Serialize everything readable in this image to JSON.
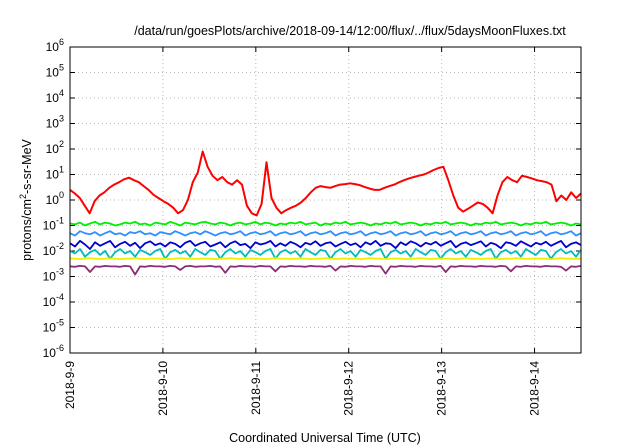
{
  "chart_data": {
    "type": "line",
    "title": "/data/run/goesPlots/archive/2018-09-14/12:00/flux/../flux/5daysMoonFluxes.txt",
    "xlabel": "Coordinated Universal Time (UTC)",
    "ylabel": "protons/cm²-s-sr-MeV",
    "ylabel_parts": {
      "pre": "protons/cm",
      "sup": "2",
      "post": "-s-sr-MeV"
    },
    "yscale": "log",
    "ylim": [
      1e-06,
      1000000.0
    ],
    "yticks": [
      {
        "base": "10",
        "exp": "6"
      },
      {
        "base": "10",
        "exp": "5"
      },
      {
        "base": "10",
        "exp": "4"
      },
      {
        "base": "10",
        "exp": "3"
      },
      {
        "base": "10",
        "exp": "2"
      },
      {
        "base": "10",
        "exp": "1"
      },
      {
        "base": "10",
        "exp": "0"
      },
      {
        "base": "10",
        "exp": "-1"
      },
      {
        "base": "10",
        "exp": "-2"
      },
      {
        "base": "10",
        "exp": "-3"
      },
      {
        "base": "10",
        "exp": "-4"
      },
      {
        "base": "10",
        "exp": "-5"
      },
      {
        "base": "10",
        "exp": "-6"
      }
    ],
    "xlim": [
      "2018-09-09T00:00",
      "2018-09-14T12:00"
    ],
    "xticks": [
      "2018-9-9",
      "2018-9-10",
      "2018-9-11",
      "2018-9-12",
      "2018-9-13",
      "2018-9-14"
    ],
    "grid": true,
    "series": [
      {
        "color": "#ff0000",
        "values": [
          2.5,
          1.8,
          1.2,
          0.6,
          0.3,
          0.9,
          1.5,
          2,
          3,
          4,
          5,
          6.5,
          7.5,
          6,
          5,
          3.5,
          2.5,
          1.6,
          1.2,
          0.9,
          0.7,
          0.5,
          0.3,
          0.4,
          1,
          5,
          12,
          80,
          20,
          9,
          6,
          8,
          5,
          4,
          6,
          4,
          0.6,
          0.3,
          0.25,
          0.7,
          30,
          1.2,
          0.5,
          0.3,
          0.4,
          0.5,
          0.6,
          0.8,
          1.2,
          2,
          3,
          3.5,
          3.2,
          3,
          3.5,
          4,
          4.2,
          4.5,
          4.2,
          3.8,
          3.2,
          2.8,
          2.5,
          2.5,
          3,
          3.5,
          4,
          5,
          6,
          7,
          8,
          9,
          10,
          12,
          15,
          18,
          20,
          6,
          1.5,
          0.5,
          0.35,
          0.45,
          0.6,
          0.8,
          0.7,
          0.5,
          0.3,
          1.5,
          5,
          8,
          6,
          5,
          9,
          8,
          7,
          6,
          5.5,
          5,
          4,
          0.9,
          1.5,
          1,
          2,
          1.2,
          1.8
        ]
      },
      {
        "color": "#00ee00",
        "values": [
          0.12,
          0.11,
          0.13,
          0.1,
          0.12,
          0.14,
          0.11,
          0.13,
          0.12,
          0.1,
          0.11,
          0.13,
          0.12,
          0.14,
          0.11,
          0.12,
          0.1,
          0.13,
          0.12,
          0.11,
          0.14,
          0.12,
          0.1,
          0.13,
          0.12,
          0.11,
          0.13,
          0.14,
          0.12,
          0.11,
          0.13,
          0.12,
          0.1,
          0.12,
          0.13,
          0.11,
          0.12,
          0.14,
          0.11,
          0.13,
          0.12,
          0.1,
          0.12,
          0.11,
          0.13,
          0.12,
          0.14,
          0.11,
          0.12,
          0.13,
          0.1,
          0.12,
          0.11,
          0.13,
          0.12,
          0.14,
          0.11,
          0.12,
          0.13,
          0.12,
          0.1,
          0.12,
          0.11,
          0.13,
          0.12,
          0.14,
          0.11,
          0.12,
          0.13,
          0.12,
          0.1,
          0.12,
          0.11,
          0.13,
          0.12,
          0.14,
          0.11,
          0.12,
          0.13,
          0.12,
          0.1,
          0.12,
          0.11,
          0.13,
          0.12,
          0.14,
          0.11,
          0.12,
          0.13,
          0.12,
          0.1,
          0.12,
          0.11,
          0.13,
          0.12,
          0.14,
          0.11,
          0.12,
          0.13,
          0.12,
          0.1,
          0.12,
          0.11
        ]
      },
      {
        "color": "#2f8fff",
        "values": [
          0.05,
          0.04,
          0.06,
          0.05,
          0.045,
          0.055,
          0.04,
          0.05,
          0.06,
          0.045,
          0.05,
          0.04,
          0.055,
          0.05,
          0.06,
          0.045,
          0.05,
          0.04,
          0.055,
          0.05,
          0.045,
          0.06,
          0.05,
          0.04,
          0.05,
          0.055,
          0.045,
          0.06,
          0.05,
          0.04,
          0.05,
          0.055,
          0.045,
          0.05,
          0.06,
          0.04,
          0.05,
          0.055,
          0.045,
          0.05,
          0.06,
          0.04,
          0.05,
          0.055,
          0.045,
          0.05,
          0.06,
          0.04,
          0.05,
          0.055,
          0.045,
          0.05,
          0.06,
          0.04,
          0.05,
          0.055,
          0.045,
          0.05,
          0.06,
          0.04,
          0.05,
          0.055,
          0.045,
          0.05,
          0.06,
          0.04,
          0.05,
          0.055,
          0.045,
          0.05,
          0.06,
          0.04,
          0.05,
          0.055,
          0.045,
          0.05,
          0.06,
          0.04,
          0.05,
          0.055,
          0.045,
          0.05,
          0.06,
          0.04,
          0.05,
          0.055,
          0.045,
          0.05,
          0.06,
          0.04,
          0.05,
          0.055,
          0.045,
          0.05,
          0.06,
          0.04,
          0.05,
          0.055,
          0.045,
          0.05,
          0.06,
          0.04,
          0.05
        ]
      },
      {
        "color": "#0000cc",
        "values": [
          0.02,
          0.015,
          0.025,
          0.018,
          0.012,
          0.022,
          0.016,
          0.02,
          0.025,
          0.014,
          0.019,
          0.023,
          0.016,
          0.021,
          0.013,
          0.02,
          0.024,
          0.017,
          0.02,
          0.015,
          0.022,
          0.019,
          0.014,
          0.021,
          0.025,
          0.016,
          0.02,
          0.023,
          0.015,
          0.018,
          0.022,
          0.014,
          0.02,
          0.024,
          0.017,
          0.019,
          0.013,
          0.022,
          0.018,
          0.02,
          0.025,
          0.015,
          0.02,
          0.016,
          0.023,
          0.019,
          0.014,
          0.021,
          0.018,
          0.024,
          0.016,
          0.02,
          0.022,
          0.015,
          0.019,
          0.023,
          0.017,
          0.02,
          0.014,
          0.022,
          0.018,
          0.025,
          0.016,
          0.02,
          0.019,
          0.013,
          0.022,
          0.017,
          0.024,
          0.02,
          0.015,
          0.021,
          0.018,
          0.023,
          0.016,
          0.02,
          0.025,
          0.014,
          0.019,
          0.022,
          0.017,
          0.02,
          0.024,
          0.015,
          0.021,
          0.018,
          0.013,
          0.022,
          0.02,
          0.016,
          0.024,
          0.019,
          0.015,
          0.021,
          0.018,
          0.023,
          0.016,
          0.02,
          0.025,
          0.014,
          0.019,
          0.022,
          0.017
        ]
      },
      {
        "color": "#00bbbb",
        "values": [
          0.01,
          0.008,
          0.012,
          0.006,
          0.009,
          0.011,
          0.007,
          0.01,
          0.005,
          0.009,
          0.012,
          0.008,
          0.01,
          0.006,
          0.011,
          0.009,
          0.007,
          0.01,
          0.012,
          0.005,
          0.009,
          0.011,
          0.008,
          0.01,
          0.006,
          0.012,
          0.009,
          0.007,
          0.011,
          0.01,
          0.005,
          0.009,
          0.012,
          0.008,
          0.01,
          0.006,
          0.011,
          0.009,
          0.007,
          0.01,
          0.012,
          0.005,
          0.009,
          0.011,
          0.008,
          0.01,
          0.006,
          0.012,
          0.009,
          0.007,
          0.011,
          0.01,
          0.005,
          0.009,
          0.012,
          0.008,
          0.01,
          0.006,
          0.011,
          0.009,
          0.007,
          0.01,
          0.012,
          0.005,
          0.009,
          0.011,
          0.008,
          0.01,
          0.006,
          0.012,
          0.009,
          0.007,
          0.011,
          0.01,
          0.005,
          0.009,
          0.012,
          0.008,
          0.01,
          0.006,
          0.011,
          0.009,
          0.007,
          0.01,
          0.012,
          0.005,
          0.009,
          0.011,
          0.008,
          0.01,
          0.006,
          0.012,
          0.009,
          0.007,
          0.011,
          0.01,
          0.005,
          0.009,
          0.012,
          0.008,
          0.01,
          0.006,
          0.011
        ]
      },
      {
        "color": "#eeee00",
        "values": [
          0.005,
          0.005,
          0.0048,
          0.005,
          0.0052,
          0.005,
          0.0049,
          0.005,
          0.0051,
          0.005,
          0.0048,
          0.005,
          0.005,
          0.0052,
          0.005,
          0.0049,
          0.005,
          0.0051,
          0.005,
          0.005,
          0.0048,
          0.005,
          0.0052,
          0.005,
          0.005,
          0.0049,
          0.005,
          0.0051,
          0.005,
          0.0048,
          0.005,
          0.005,
          0.0052,
          0.005,
          0.0049,
          0.005,
          0.0051,
          0.005,
          0.005,
          0.0048,
          0.005,
          0.0052,
          0.005,
          0.005,
          0.0049,
          0.005,
          0.0051,
          0.005,
          0.0048,
          0.005,
          0.005,
          0.0052,
          0.005,
          0.0049,
          0.005,
          0.0051,
          0.005,
          0.005,
          0.0048,
          0.005,
          0.0052,
          0.005,
          0.005,
          0.0049,
          0.005,
          0.0051,
          0.005,
          0.0048,
          0.005,
          0.005,
          0.0052,
          0.005,
          0.0049,
          0.005,
          0.0051,
          0.005,
          0.005,
          0.0048,
          0.005,
          0.0052,
          0.005,
          0.005,
          0.0049,
          0.005,
          0.0051,
          0.005,
          0.0048,
          0.005,
          0.005,
          0.0052,
          0.005,
          0.0049,
          0.005,
          0.0051,
          0.005,
          0.005,
          0.0048,
          0.005,
          0.0052,
          0.005,
          0.005,
          0.0049,
          0.005
        ]
      },
      {
        "color": "#8b2c77",
        "values": [
          0.0025,
          0.0024,
          0.0026,
          0.0025,
          0.0015,
          0.0025,
          0.0024,
          0.0026,
          0.0025,
          0.0025,
          0.0024,
          0.0026,
          0.0025,
          0.0012,
          0.0025,
          0.0024,
          0.0026,
          0.0025,
          0.0025,
          0.0024,
          0.0026,
          0.0025,
          0.0018,
          0.0025,
          0.0026,
          0.0024,
          0.0025,
          0.0025,
          0.0026,
          0.0024,
          0.0025,
          0.0014,
          0.0025,
          0.0024,
          0.0026,
          0.0025,
          0.0025,
          0.0024,
          0.0026,
          0.0025,
          0.0025,
          0.0016,
          0.0025,
          0.0024,
          0.0026,
          0.0025,
          0.0025,
          0.0024,
          0.0026,
          0.0025,
          0.0025,
          0.0024,
          0.0026,
          0.0017,
          0.0025,
          0.0024,
          0.0026,
          0.0025,
          0.0025,
          0.0024,
          0.0026,
          0.0025,
          0.0025,
          0.0013,
          0.0025,
          0.0024,
          0.0026,
          0.0025,
          0.0025,
          0.0024,
          0.0026,
          0.0025,
          0.0025,
          0.0024,
          0.0026,
          0.0015,
          0.0025,
          0.0024,
          0.0026,
          0.0025,
          0.0025,
          0.0024,
          0.0026,
          0.0025,
          0.0025,
          0.0024,
          0.0026,
          0.0025,
          0.0016,
          0.0025,
          0.0024,
          0.0026,
          0.0025,
          0.0025,
          0.0024,
          0.0026,
          0.0025,
          0.0025,
          0.0024,
          0.0017,
          0.0025,
          0.0024,
          0.0026
        ]
      }
    ]
  }
}
